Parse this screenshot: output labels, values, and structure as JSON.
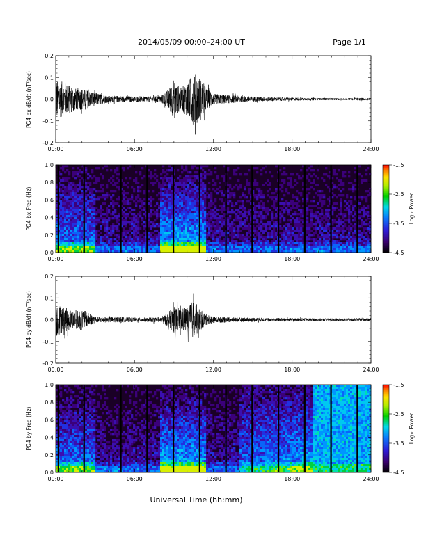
{
  "header": {
    "title": "2014/05/09  00:00–24:00 UT",
    "page": "Page 1/1"
  },
  "footer": {
    "xlabel": "Universal Time (hh:mm)"
  },
  "colorbar": {
    "label": "Log₁₀ Power",
    "ticks": [
      "-1.5",
      "-2.5",
      "-3.5",
      "-4.5"
    ],
    "range": [
      -4.5,
      -1.5
    ]
  },
  "chart_data": [
    {
      "type": "line",
      "ylabel": "PG4 bx dB/dt (nT/sec)",
      "xlim": [
        0,
        24
      ],
      "ylim": [
        -0.2,
        0.2
      ],
      "x_ticks": [
        "00:00",
        "06:00",
        "12:00",
        "18:00",
        "24:00"
      ],
      "y_ticks": [
        "0.2",
        "0.1",
        "0.0",
        "-0.1",
        "-0.2"
      ],
      "series": [
        {
          "x": [
            0,
            0.5,
            1,
            1.5,
            2,
            2.5,
            3,
            4,
            5,
            6,
            7,
            8,
            8.5,
            9,
            9.5,
            10,
            10.5,
            11,
            11.5,
            12,
            13,
            14,
            15,
            16,
            17,
            18,
            19,
            20,
            21,
            22,
            23,
            24
          ],
          "amplitude": [
            0.1,
            0.08,
            0.07,
            0.05,
            0.05,
            0.04,
            0.03,
            0.015,
            0.015,
            0.012,
            0.012,
            0.015,
            0.04,
            0.09,
            0.05,
            0.08,
            0.12,
            0.1,
            0.05,
            0.025,
            0.02,
            0.015,
            0.012,
            0.01,
            0.008,
            0.007,
            0.006,
            0.005,
            0.005,
            0.004,
            0.006,
            0.005
          ]
        }
      ]
    },
    {
      "type": "heatmap",
      "ylabel": "PG4 bx Freq (Hz)",
      "xlim": [
        0,
        24
      ],
      "ylim": [
        0,
        1
      ],
      "x_ticks": [
        "00:00",
        "06:00",
        "12:00",
        "18:00",
        "24:00"
      ],
      "y_ticks": [
        "1.0",
        "0.8",
        "0.6",
        "0.4",
        "0.2",
        "0.0"
      ],
      "gap_hours": [
        0.15,
        2.1,
        4.9,
        6.9,
        8.9,
        10.9,
        12.9,
        14.9,
        16.9,
        18.9,
        20.9,
        22.9
      ]
    },
    {
      "type": "line",
      "ylabel": "PG4 by dB/dt (nT/sec)",
      "xlim": [
        0,
        24
      ],
      "ylim": [
        -0.2,
        0.2
      ],
      "x_ticks": [
        "00:00",
        "06:00",
        "12:00",
        "18:00",
        "24:00"
      ],
      "y_ticks": [
        "0.2",
        "0.1",
        "0.0",
        "-0.1",
        "-0.2"
      ],
      "series": [
        {
          "x": [
            0,
            0.5,
            1,
            1.5,
            2,
            2.5,
            3,
            4,
            5,
            6,
            7,
            8,
            8.5,
            9,
            9.5,
            10,
            10.5,
            11,
            11.5,
            12,
            13,
            14,
            15,
            16,
            17,
            18,
            19,
            20,
            21,
            22,
            23,
            24
          ],
          "amplitude": [
            0.08,
            0.06,
            0.05,
            0.04,
            0.05,
            0.03,
            0.015,
            0.012,
            0.012,
            0.01,
            0.01,
            0.012,
            0.03,
            0.06,
            0.05,
            0.06,
            0.09,
            0.05,
            0.025,
            0.015,
            0.012,
            0.01,
            0.01,
            0.008,
            0.008,
            0.007,
            0.007,
            0.006,
            0.006,
            0.006,
            0.007,
            0.006
          ]
        }
      ]
    },
    {
      "type": "heatmap",
      "ylabel": "PG4 by Freq (Hz)",
      "xlim": [
        0,
        24
      ],
      "ylim": [
        0,
        1
      ],
      "x_ticks": [
        "00:00",
        "06:00",
        "12:00",
        "18:00",
        "24:00"
      ],
      "y_ticks": [
        "1.0",
        "0.8",
        "0.6",
        "0.4",
        "0.2",
        "0.0"
      ],
      "gap_hours": [
        0.15,
        2.1,
        4.9,
        6.9,
        8.9,
        10.9,
        12.9,
        14.9,
        16.9,
        18.9,
        20.9,
        22.9
      ]
    }
  ]
}
